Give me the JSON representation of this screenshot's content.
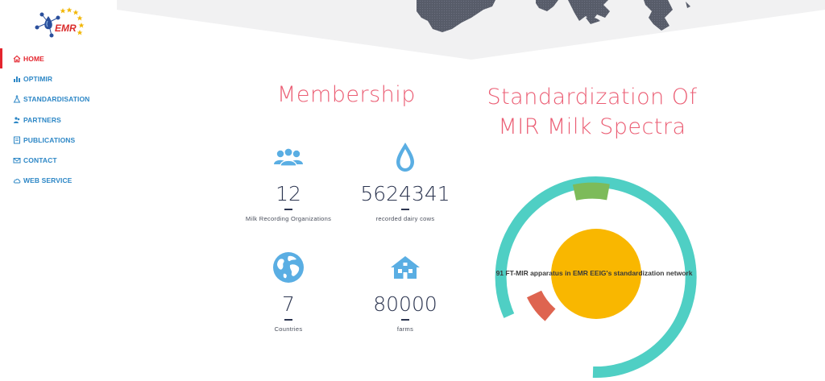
{
  "logo": {
    "text": "EMR",
    "icon": "emr-logo"
  },
  "nav": {
    "items": [
      {
        "label": "HOME",
        "icon": "home-icon",
        "active": true
      },
      {
        "label": "OPTIMIR",
        "icon": "chart-icon"
      },
      {
        "label": "STANDARDISATION",
        "icon": "flask-icon"
      },
      {
        "label": "PARTNERS",
        "icon": "people-icon"
      },
      {
        "label": "PUBLICATIONS",
        "icon": "book-icon"
      },
      {
        "label": "CONTACT",
        "icon": "envelope-icon"
      },
      {
        "label": "WEB SERVICE",
        "icon": "cloud-icon"
      }
    ]
  },
  "membership": {
    "title": "Membership",
    "stats": [
      {
        "value": "12",
        "label": "Milk Recording Organizations",
        "icon": "users-icon"
      },
      {
        "value": "5624341",
        "label": "recorded dairy cows",
        "icon": "drop-icon"
      },
      {
        "value": "7",
        "label": "Countries",
        "icon": "globe-icon"
      },
      {
        "value": "80000",
        "label": "farms",
        "icon": "house-icon"
      }
    ]
  },
  "standardization": {
    "title_line1": "Standardization Of",
    "title_line2": "MIR Milk Spectra",
    "caption": "91 FT-MIR apparatus in EMR EEIG's standardization network"
  },
  "colors": {
    "accent_red": "#e4252e",
    "nav_blue": "#2d87c6",
    "title_pink": "#eb5e74",
    "icon_blue": "#5aaee3",
    "ring_teal": "#4fcfc4",
    "ring_green": "#7dbb5a",
    "ring_red": "#de6450",
    "center_yellow": "#f9b700",
    "map_gray": "#575c69"
  }
}
